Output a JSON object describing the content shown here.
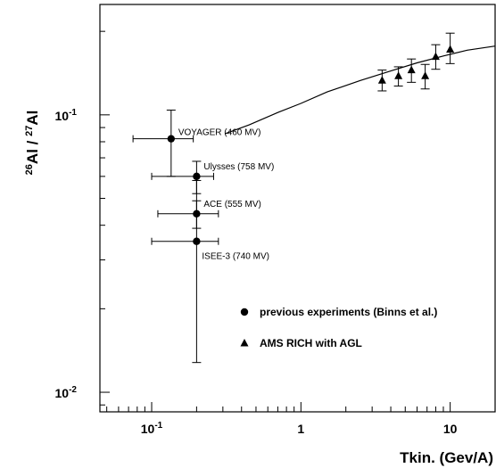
{
  "chart_data": {
    "type": "scatter",
    "xlabel": "Tkin. (Gev/A)",
    "ylabel_html": "<tspan baseline-shift='super' font-size='11'>26</tspan>Al / <tspan baseline-shift='super' font-size='11'>27</tspan>Al",
    "xscale": "log",
    "yscale": "log",
    "xlim": [
      0.045,
      20
    ],
    "ylim": [
      0.0085,
      0.25
    ],
    "x_major_ticks": [
      {
        "value": 0.1,
        "label_base": "10",
        "label_exp": "-1"
      },
      {
        "value": 1,
        "label": "1"
      },
      {
        "value": 10,
        "label": "10"
      }
    ],
    "y_major_ticks": [
      {
        "value": 0.1,
        "label_base": "10",
        "label_exp": "-1"
      },
      {
        "value": 0.01,
        "label_base": "10",
        "label_exp": "-2"
      }
    ],
    "legend_position": "lower-right",
    "series": [
      {
        "name": "previous experiments (Binns et al.)",
        "marker": "circle",
        "points": [
          {
            "label": "VOYAGER (460 MV)",
            "x": 0.135,
            "y": 0.082,
            "xerr": [
              0.075,
              0.19
            ],
            "yerr": [
              0.06,
              0.104
            ]
          },
          {
            "label": "Ulysses  (758 MV)",
            "x": 0.2,
            "y": 0.06,
            "xerr": [
              0.1,
              0.26
            ],
            "yerr": [
              0.052,
              0.068
            ]
          },
          {
            "label": "ACE (555 MV)",
            "x": 0.2,
            "y": 0.044,
            "xerr": [
              0.11,
              0.28
            ],
            "yerr": [
              0.039,
              0.049
            ]
          },
          {
            "label": "ISEE-3 (740 MV)",
            "x": 0.2,
            "y": 0.035,
            "xerr": [
              0.1,
              0.28
            ],
            "yerr": [
              0.0128,
              0.058
            ]
          }
        ]
      },
      {
        "name": "AMS RICH with AGL",
        "marker": "triangle",
        "points": [
          {
            "x": 3.5,
            "y": 0.133,
            "yerr": [
              0.122,
              0.145
            ]
          },
          {
            "x": 4.5,
            "y": 0.138,
            "yerr": [
              0.127,
              0.149
            ]
          },
          {
            "x": 5.5,
            "y": 0.145,
            "yerr": [
              0.131,
              0.159
            ]
          },
          {
            "x": 6.8,
            "y": 0.138,
            "yerr": [
              0.124,
              0.152
            ]
          },
          {
            "x": 8.0,
            "y": 0.162,
            "yerr": [
              0.146,
              0.179
            ]
          },
          {
            "x": 10.0,
            "y": 0.172,
            "yerr": [
              0.153,
              0.197
            ]
          }
        ]
      }
    ],
    "model_curve": [
      [
        0.31,
        0.0855
      ],
      [
        0.45,
        0.092
      ],
      [
        0.7,
        0.102
      ],
      [
        1.0,
        0.11
      ],
      [
        1.5,
        0.121
      ],
      [
        2.5,
        0.133
      ],
      [
        4.0,
        0.144
      ],
      [
        6.0,
        0.154
      ],
      [
        9.0,
        0.163
      ],
      [
        13.0,
        0.171
      ],
      [
        20.0,
        0.177
      ]
    ]
  }
}
